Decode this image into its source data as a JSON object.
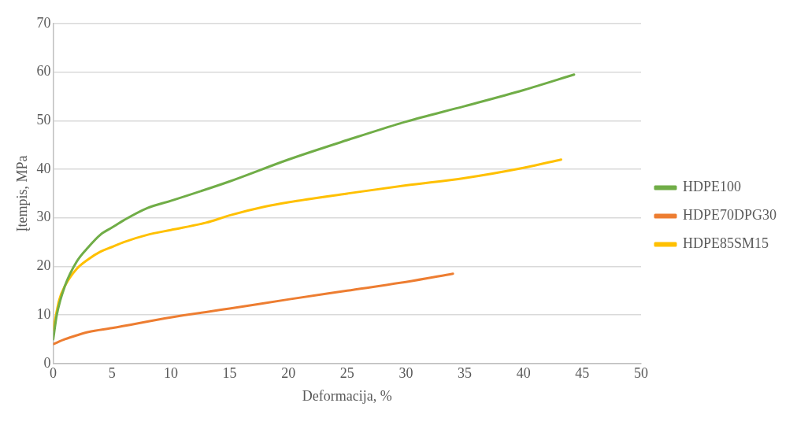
{
  "chart_data": {
    "type": "line",
    "xlabel": "Deformacija, %",
    "ylabel": "Įtempis, MPa",
    "xlim": [
      0,
      50
    ],
    "xticks": [
      0,
      5,
      10,
      15,
      20,
      25,
      30,
      35,
      40,
      45,
      50
    ],
    "ylim": [
      0,
      70
    ],
    "yticks": [
      0,
      10,
      20,
      30,
      40,
      50,
      60,
      70
    ],
    "grid": "y",
    "legend": "right",
    "marker": "none",
    "line_style": "solid",
    "series": [
      {
        "name": "HDPE100",
        "color": "#70ad47",
        "x": [
          0,
          0.3,
          1,
          2,
          3,
          4,
          5,
          6,
          8,
          10,
          15,
          20,
          25,
          30,
          35,
          40,
          44.3
        ],
        "values": [
          5,
          10,
          16,
          21,
          24,
          26.5,
          28,
          29.5,
          32,
          33.5,
          37.5,
          42,
          46,
          49.8,
          53,
          56.3,
          59.5
        ]
      },
      {
        "name": "HDPE70DPG30",
        "color": "#ed7d31",
        "x": [
          0,
          1,
          2,
          3,
          5,
          10,
          15,
          20,
          25,
          30,
          34
        ],
        "values": [
          4,
          5,
          5.8,
          6.5,
          7.3,
          9.5,
          11.3,
          13.2,
          15,
          16.8,
          18.5
        ]
      },
      {
        "name": "HDPE85SM15",
        "color": "#ffc000",
        "x": [
          0,
          0.5,
          1,
          2,
          3,
          4,
          5,
          6,
          8,
          10,
          13,
          15,
          18,
          20,
          25,
          30,
          35,
          40,
          43.2
        ],
        "values": [
          7,
          13,
          16,
          19.5,
          21.5,
          23,
          24,
          25,
          26.5,
          27.5,
          29,
          30.5,
          32.3,
          33.2,
          35,
          36.7,
          38.2,
          40.3,
          42
        ]
      }
    ]
  }
}
